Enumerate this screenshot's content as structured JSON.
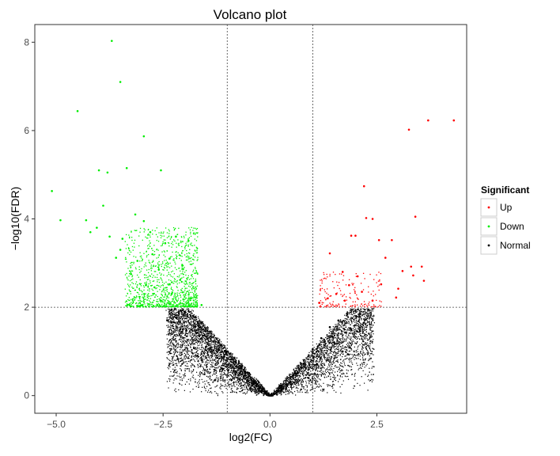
{
  "chart_data": {
    "type": "scatter",
    "title": "Volcano plot",
    "xlabel": "log2(FC)",
    "ylabel": "−log10(FDR)",
    "xlim": [
      -5.5,
      4.6
    ],
    "ylim": [
      -0.4,
      8.4
    ],
    "xticks": [
      {
        "value": -5.0,
        "label": "−5.0"
      },
      {
        "value": -2.5,
        "label": "−2.5"
      },
      {
        "value": 0.0,
        "label": "0.0"
      },
      {
        "value": 2.5,
        "label": "2.5"
      }
    ],
    "yticks": [
      {
        "value": 0,
        "label": "0"
      },
      {
        "value": 2,
        "label": "2"
      },
      {
        "value": 4,
        "label": "4"
      },
      {
        "value": 6,
        "label": "6"
      },
      {
        "value": 8,
        "label": "8"
      }
    ],
    "grid": false,
    "threshold_lines": {
      "vertical": [
        -1,
        1
      ],
      "horizontal": [
        2
      ]
    },
    "legend": {
      "title": "Significant",
      "position": "right",
      "entries": [
        {
          "label": "Up",
          "color": "#ff0000"
        },
        {
          "label": "Down",
          "color": "#00ee00"
        },
        {
          "label": "Normal",
          "color": "#000000"
        }
      ]
    },
    "series": [
      {
        "name": "Up",
        "color": "#ff0000",
        "points": [
          [
            4.3,
            6.23
          ],
          [
            3.7,
            6.23
          ],
          [
            3.25,
            6.02
          ],
          [
            2.2,
            4.74
          ],
          [
            2.4,
            4.0
          ],
          [
            2.25,
            4.02
          ],
          [
            3.4,
            4.05
          ],
          [
            1.9,
            3.62
          ],
          [
            2.0,
            3.62
          ],
          [
            2.55,
            3.52
          ],
          [
            2.85,
            3.52
          ],
          [
            3.55,
            2.92
          ],
          [
            3.3,
            2.92
          ],
          [
            3.1,
            2.82
          ],
          [
            3.35,
            2.72
          ],
          [
            1.4,
            3.22
          ],
          [
            2.7,
            3.12
          ],
          [
            2.6,
            2.52
          ],
          [
            3.0,
            2.42
          ],
          [
            3.6,
            2.6
          ],
          [
            2.95,
            2.22
          ],
          [
            1.7,
            2.8
          ],
          [
            1.85,
            2.5
          ],
          [
            2.05,
            2.7
          ],
          [
            1.55,
            2.3
          ],
          [
            1.35,
            2.2
          ],
          [
            1.75,
            2.15
          ],
          [
            2.15,
            2.35
          ],
          [
            1.15,
            2.1
          ],
          [
            2.4,
            2.15
          ]
        ]
      },
      {
        "name": "Down",
        "color": "#00ee00",
        "points": [
          [
            -3.7,
            8.03
          ],
          [
            -3.5,
            7.1
          ],
          [
            -4.5,
            6.44
          ],
          [
            -5.1,
            4.63
          ],
          [
            -4.9,
            3.97
          ],
          [
            -4.3,
            3.97
          ],
          [
            -2.95,
            5.87
          ],
          [
            -4.0,
            5.1
          ],
          [
            -3.35,
            5.15
          ],
          [
            -3.8,
            5.05
          ],
          [
            -2.55,
            5.1
          ],
          [
            -4.2,
            3.7
          ],
          [
            -4.05,
            3.8
          ],
          [
            -3.75,
            3.6
          ],
          [
            -3.5,
            3.3
          ],
          [
            -3.15,
            4.1
          ],
          [
            -2.95,
            3.95
          ],
          [
            -2.8,
            3.7
          ],
          [
            -3.45,
            3.55
          ],
          [
            -2.45,
            3.45
          ],
          [
            -2.75,
            3.2
          ],
          [
            -3.1,
            3.05
          ],
          [
            -3.6,
            3.12
          ],
          [
            -2.35,
            3.1
          ],
          [
            -2.6,
            2.85
          ],
          [
            -2.1,
            2.62
          ],
          [
            -2.9,
            2.5
          ],
          [
            -2.3,
            2.3
          ],
          [
            -1.85,
            2.2
          ],
          [
            -2.55,
            2.15
          ],
          [
            -3.25,
            2.75
          ],
          [
            -1.6,
            2.05
          ],
          [
            -2.05,
            2.95
          ],
          [
            -2.7,
            2.45
          ],
          [
            -3.9,
            4.3
          ],
          [
            -2.2,
            3.6
          ]
        ]
      },
      {
        "name": "Normal",
        "color": "#000000",
        "points": [
          [
            0.0,
            0.0
          ],
          [
            -0.2,
            0.08
          ],
          [
            0.2,
            0.09
          ],
          [
            -0.4,
            0.25
          ],
          [
            0.4,
            0.22
          ],
          [
            -0.6,
            0.45
          ],
          [
            0.6,
            0.5
          ],
          [
            -0.8,
            0.75
          ],
          [
            0.8,
            0.72
          ],
          [
            -1.0,
            1.0
          ],
          [
            1.0,
            1.05
          ],
          [
            -1.2,
            1.2
          ],
          [
            1.2,
            1.3
          ],
          [
            -1.4,
            1.45
          ],
          [
            1.4,
            1.55
          ],
          [
            -1.6,
            1.65
          ],
          [
            1.6,
            1.7
          ],
          [
            -1.8,
            1.8
          ],
          [
            1.8,
            1.85
          ],
          [
            -2.0,
            1.9
          ],
          [
            2.0,
            1.92
          ],
          [
            -2.3,
            1.95
          ],
          [
            2.3,
            1.95
          ],
          [
            -1.1,
            0.6
          ],
          [
            1.1,
            0.7
          ],
          [
            -1.5,
            1.1
          ],
          [
            1.5,
            1.2
          ],
          [
            -2.1,
            1.5
          ],
          [
            1.9,
            1.5
          ],
          [
            -0.9,
            0.35
          ],
          [
            0.9,
            0.4
          ],
          [
            -1.7,
            0.9
          ],
          [
            1.7,
            1.0
          ],
          [
            -2.4,
            1.7
          ],
          [
            2.2,
            1.65
          ]
        ]
      }
    ]
  }
}
